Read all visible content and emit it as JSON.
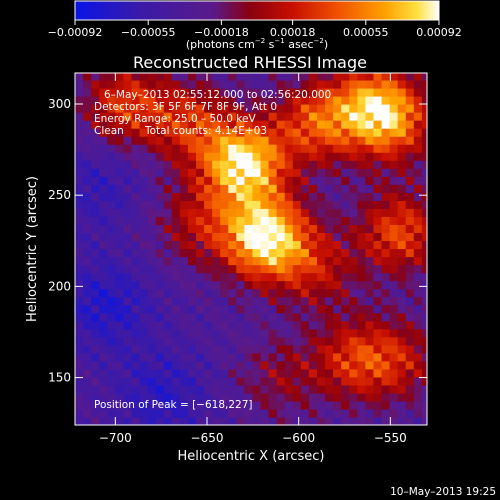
{
  "chart_data": {
    "type": "heatmap",
    "title": "Reconstructed RHESSI Image",
    "xlabel": "Heliocentric X (arcsec)",
    "ylabel": "Heliocentric Y (arcsec)",
    "xlim": [
      -722,
      -530
    ],
    "ylim": [
      124,
      317
    ],
    "x_ticks": [
      -700,
      -650,
      -600,
      -550
    ],
    "y_ticks": [
      150,
      200,
      250,
      300
    ],
    "x_tick_labels": [
      "−700",
      "−650",
      "−600",
      "−550"
    ],
    "y_tick_labels": [
      "150",
      "200",
      "250",
      "300"
    ],
    "colorbar": {
      "range": [
        -0.00092,
        0.00092
      ],
      "ticks": [
        -0.00092,
        -0.00055,
        -0.00018,
        0.00018,
        0.00055,
        0.00092
      ],
      "tick_labels": [
        "−0.00092",
        "−0.00055",
        "−0.00018",
        "0.00018",
        "0.00055",
        "0.00092"
      ],
      "unit_label": "(photons cm",
      "unit_sup1": "−2",
      "unit_mid": " s",
      "unit_sup2": "−1",
      "unit_mid2": " asec",
      "unit_sup3": "−2",
      "unit_end": ")",
      "colors": [
        "#0a14e6",
        "#3a1aa8",
        "#5a1a8a",
        "#8a0010",
        "#c81000",
        "#f05000",
        "#ffa000",
        "#ffe040",
        "#ffffff"
      ]
    },
    "annotations": {
      "time_range": "6–May–2013 02:55:12.000 to 02:56:20.000",
      "detectors": "Detectors: 3F 5F 6F 7F 8F 9F, Att 0",
      "energy": "Energy Range: 25.0 – 50.0 keV",
      "clean_label": "Clean",
      "total_counts": "Total counts: 4.14E+03",
      "peak": "Position of Peak = [−618,227]"
    },
    "peak": [
      -618,
      227
    ],
    "sources": [
      {
        "x": -618,
        "y": 227,
        "amp": 1.0
      },
      {
        "x": -630,
        "y": 268,
        "amp": 0.95
      },
      {
        "x": -590,
        "y": 290,
        "amp": 0.55
      },
      {
        "x": -560,
        "y": 300,
        "amp": 0.6
      },
      {
        "x": -548,
        "y": 290,
        "amp": 0.5
      },
      {
        "x": -545,
        "y": 230,
        "amp": 0.55
      },
      {
        "x": -590,
        "y": 210,
        "amp": 0.35
      },
      {
        "x": -570,
        "y": 160,
        "amp": 0.45
      },
      {
        "x": -545,
        "y": 160,
        "amp": 0.35
      },
      {
        "x": -695,
        "y": 300,
        "amp": 0.5
      },
      {
        "x": -660,
        "y": 290,
        "amp": 0.45
      },
      {
        "x": -655,
        "y": 235,
        "amp": 0.35
      },
      {
        "x": -610,
        "y": 150,
        "amp": 0.25
      }
    ],
    "cold_spots": [
      {
        "x": -705,
        "y": 190,
        "amp": 0.9
      },
      {
        "x": -675,
        "y": 140,
        "amp": 0.8
      },
      {
        "x": -710,
        "y": 255,
        "amp": 0.6
      }
    ]
  },
  "timestamp": "10–May–2013 19:25"
}
